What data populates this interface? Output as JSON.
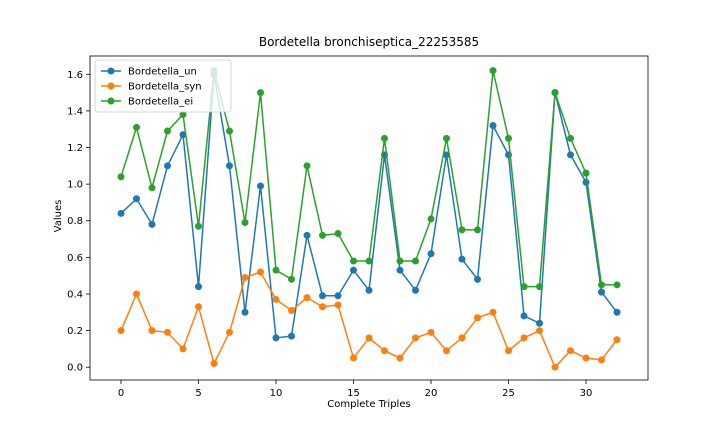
{
  "chart_data": {
    "type": "line",
    "title": "Bordetella bronchiseptica_22253585",
    "xlabel": "Complete Triples",
    "ylabel": "Values",
    "xlim": [
      -2,
      34
    ],
    "ylim": [
      -0.07,
      1.7
    ],
    "xticks": [
      0,
      5,
      10,
      15,
      20,
      25,
      30
    ],
    "yticks": [
      0.0,
      0.2,
      0.4,
      0.6,
      0.8,
      1.0,
      1.2,
      1.4,
      1.6
    ],
    "ytick_labels": [
      "0.0",
      "0.2",
      "0.4",
      "0.6",
      "0.8",
      "1.0",
      "1.2",
      "1.4",
      "1.6"
    ],
    "grid": false,
    "legend_position": "top-left",
    "x": [
      0,
      1,
      2,
      3,
      4,
      5,
      6,
      7,
      8,
      9,
      10,
      11,
      12,
      13,
      14,
      15,
      16,
      17,
      18,
      19,
      20,
      21,
      22,
      23,
      24,
      25,
      26,
      27,
      28,
      29,
      30,
      31,
      32
    ],
    "series": [
      {
        "name": "Bordetella_un",
        "color": "#1f77b4",
        "values": [
          0.84,
          0.92,
          0.78,
          1.1,
          1.27,
          0.44,
          1.6,
          1.1,
          0.3,
          0.99,
          0.16,
          0.17,
          0.72,
          0.39,
          0.39,
          0.53,
          0.42,
          1.16,
          0.53,
          0.42,
          0.62,
          1.16,
          0.59,
          0.48,
          1.32,
          1.16,
          0.28,
          0.24,
          1.5,
          1.16,
          1.01,
          0.41,
          0.3
        ]
      },
      {
        "name": "Bordetella_syn",
        "color": "#ff7f0e",
        "values": [
          0.2,
          0.4,
          0.2,
          0.19,
          0.1,
          0.33,
          0.02,
          0.19,
          0.49,
          0.52,
          0.37,
          0.31,
          0.38,
          0.33,
          0.34,
          0.05,
          0.16,
          0.09,
          0.05,
          0.16,
          0.19,
          0.09,
          0.16,
          0.27,
          0.3,
          0.09,
          0.16,
          0.2,
          0.0,
          0.09,
          0.05,
          0.04,
          0.15
        ]
      },
      {
        "name": "Bordetella_ei",
        "color": "#2ca02c",
        "values": [
          1.04,
          1.31,
          0.98,
          1.29,
          1.38,
          0.77,
          1.62,
          1.29,
          0.79,
          1.5,
          0.53,
          0.48,
          1.1,
          0.72,
          0.73,
          0.58,
          0.58,
          1.25,
          0.58,
          0.58,
          0.81,
          1.25,
          0.75,
          0.75,
          1.62,
          1.25,
          0.44,
          0.44,
          1.5,
          1.25,
          1.06,
          0.45,
          0.45
        ]
      }
    ]
  }
}
